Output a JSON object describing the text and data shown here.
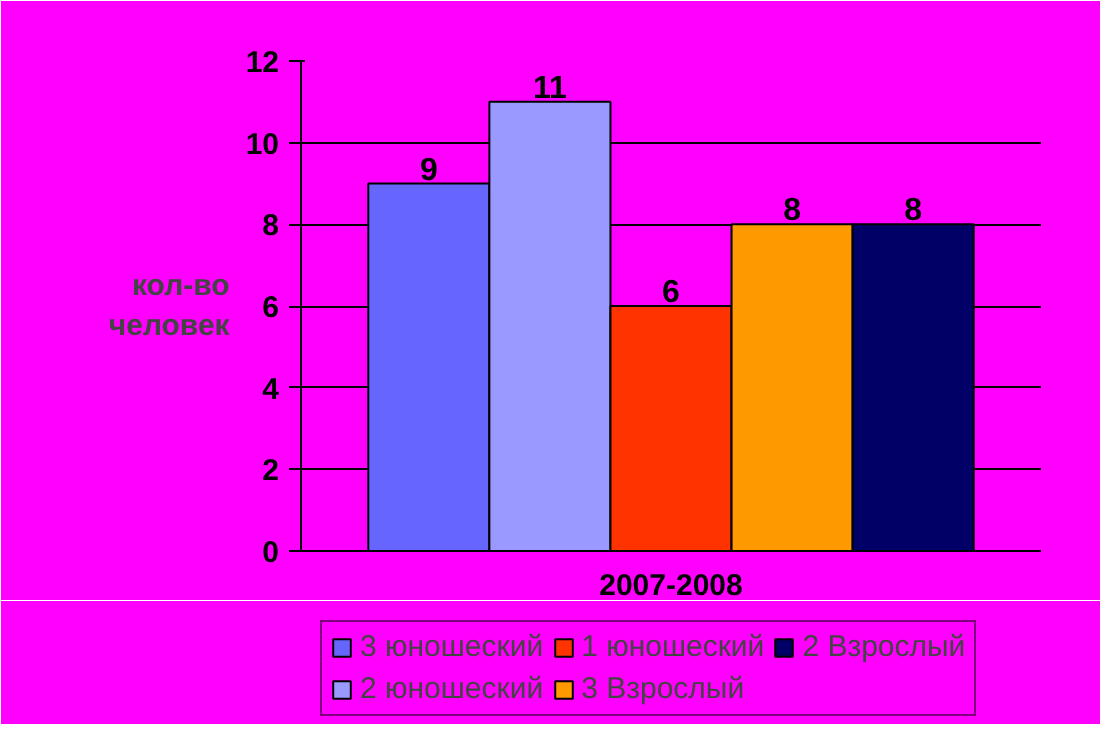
{
  "chart_data": {
    "type": "bar",
    "categories": [
      "2007-2008"
    ],
    "ylabel": "кол-во человек",
    "ylim": [
      0,
      12
    ],
    "yticks": [
      0,
      2,
      4,
      6,
      8,
      10,
      12
    ],
    "grid": "y",
    "legend": "bottom",
    "data_labels": true,
    "series": [
      {
        "name": "3 юношеский",
        "color": "#6666ff",
        "values": [
          9
        ]
      },
      {
        "name": "2 юношеский",
        "color": "#9999ff",
        "values": [
          11
        ]
      },
      {
        "name": "1 юношеский",
        "color": "#ff3300",
        "values": [
          6
        ]
      },
      {
        "name": "3 Взрослый",
        "color": "#ff9900",
        "values": [
          8
        ]
      },
      {
        "name": "2 Взрослый",
        "color": "#000066",
        "values": [
          8
        ]
      }
    ]
  }
}
